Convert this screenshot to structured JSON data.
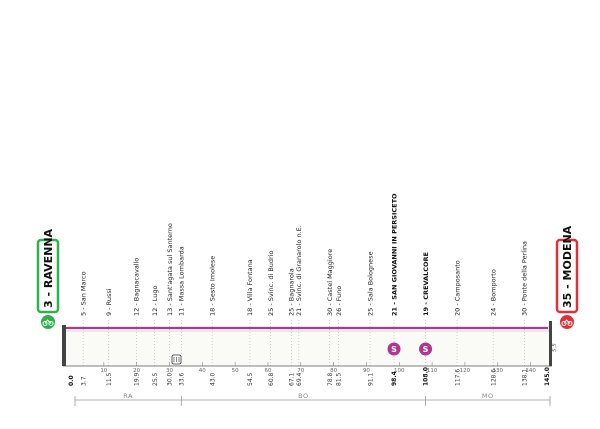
{
  "start": {
    "label": "3 - RAVENNA",
    "color": "#2bb34a"
  },
  "finish": {
    "label": "35 - MODENA",
    "color": "#e0303a"
  },
  "profile_color": "#b0378f",
  "waypoints": [
    {
      "km": 0.0,
      "km_label": "0.0",
      "name": "",
      "bold": true
    },
    {
      "km": 3.7,
      "km_label": "3.7",
      "name": "5 - San Marco"
    },
    {
      "km": 11.5,
      "km_label": "11.5",
      "name": "9 - Russi"
    },
    {
      "km": 19.9,
      "km_label": "19.9",
      "name": "12 - Bagnacavallo"
    },
    {
      "km": 25.5,
      "km_label": "25.5",
      "name": "12 - Lugo"
    },
    {
      "km": 30.0,
      "km_label": "30.0",
      "name": "13 - Sant'agata sul Santerno"
    },
    {
      "km": 33.6,
      "km_label": "33.6",
      "name": "11 - Massa Lombarda"
    },
    {
      "km": 43.0,
      "km_label": "43.0",
      "name": "18 - Sesto Imolese"
    },
    {
      "km": 54.5,
      "km_label": "54.5",
      "name": "18 - Villa Fontana"
    },
    {
      "km": 60.8,
      "km_label": "60.8",
      "name": "25 - Svinc. di Budrio"
    },
    {
      "km": 67.1,
      "km_label": "67.1",
      "name": "25 - Bagnarola"
    },
    {
      "km": 69.4,
      "km_label": "69.4",
      "name": "21 - Svinc. di Granarolo n.E."
    },
    {
      "km": 78.8,
      "km_label": "78.8",
      "name": "30 - Castel Maggiore"
    },
    {
      "km": 81.5,
      "km_label": "81.5",
      "name": "26 - Funo"
    },
    {
      "km": 91.1,
      "km_label": "91.1",
      "name": "25 - Sala Bolognese"
    },
    {
      "km": 98.4,
      "km_label": "98.4",
      "name": "21 - SAN GIOVANNI IN PERSICETO",
      "bold": true,
      "sprint": true
    },
    {
      "km": 108.0,
      "km_label": "108.0",
      "name": "19 - CREVALCORE",
      "bold": true,
      "sprint": true
    },
    {
      "km": 117.6,
      "km_label": "117.6",
      "name": "20 - Camposanto"
    },
    {
      "km": 128.6,
      "km_label": "128.6",
      "name": "24 - Bomporto"
    },
    {
      "km": 138.1,
      "km_label": "138.1",
      "name": "30 - Ponte della Perlina"
    },
    {
      "km": 145.0,
      "km_label": "145.0",
      "name": "",
      "bold": true
    }
  ],
  "axis_ticks": [
    "10",
    "20",
    "30",
    "40",
    "50",
    "60",
    "70",
    "80",
    "90",
    "100",
    "110",
    "120",
    "130",
    "140"
  ],
  "sprint_icon": "S",
  "finish_note": "5.5",
  "provinces": [
    {
      "code": "RA",
      "from_km": 0,
      "to_km": 33.6
    },
    {
      "code": "BO",
      "from_km": 33.6,
      "to_km": 108.0
    },
    {
      "code": "MO",
      "from_km": 108.0,
      "to_km": 145.0
    }
  ]
}
